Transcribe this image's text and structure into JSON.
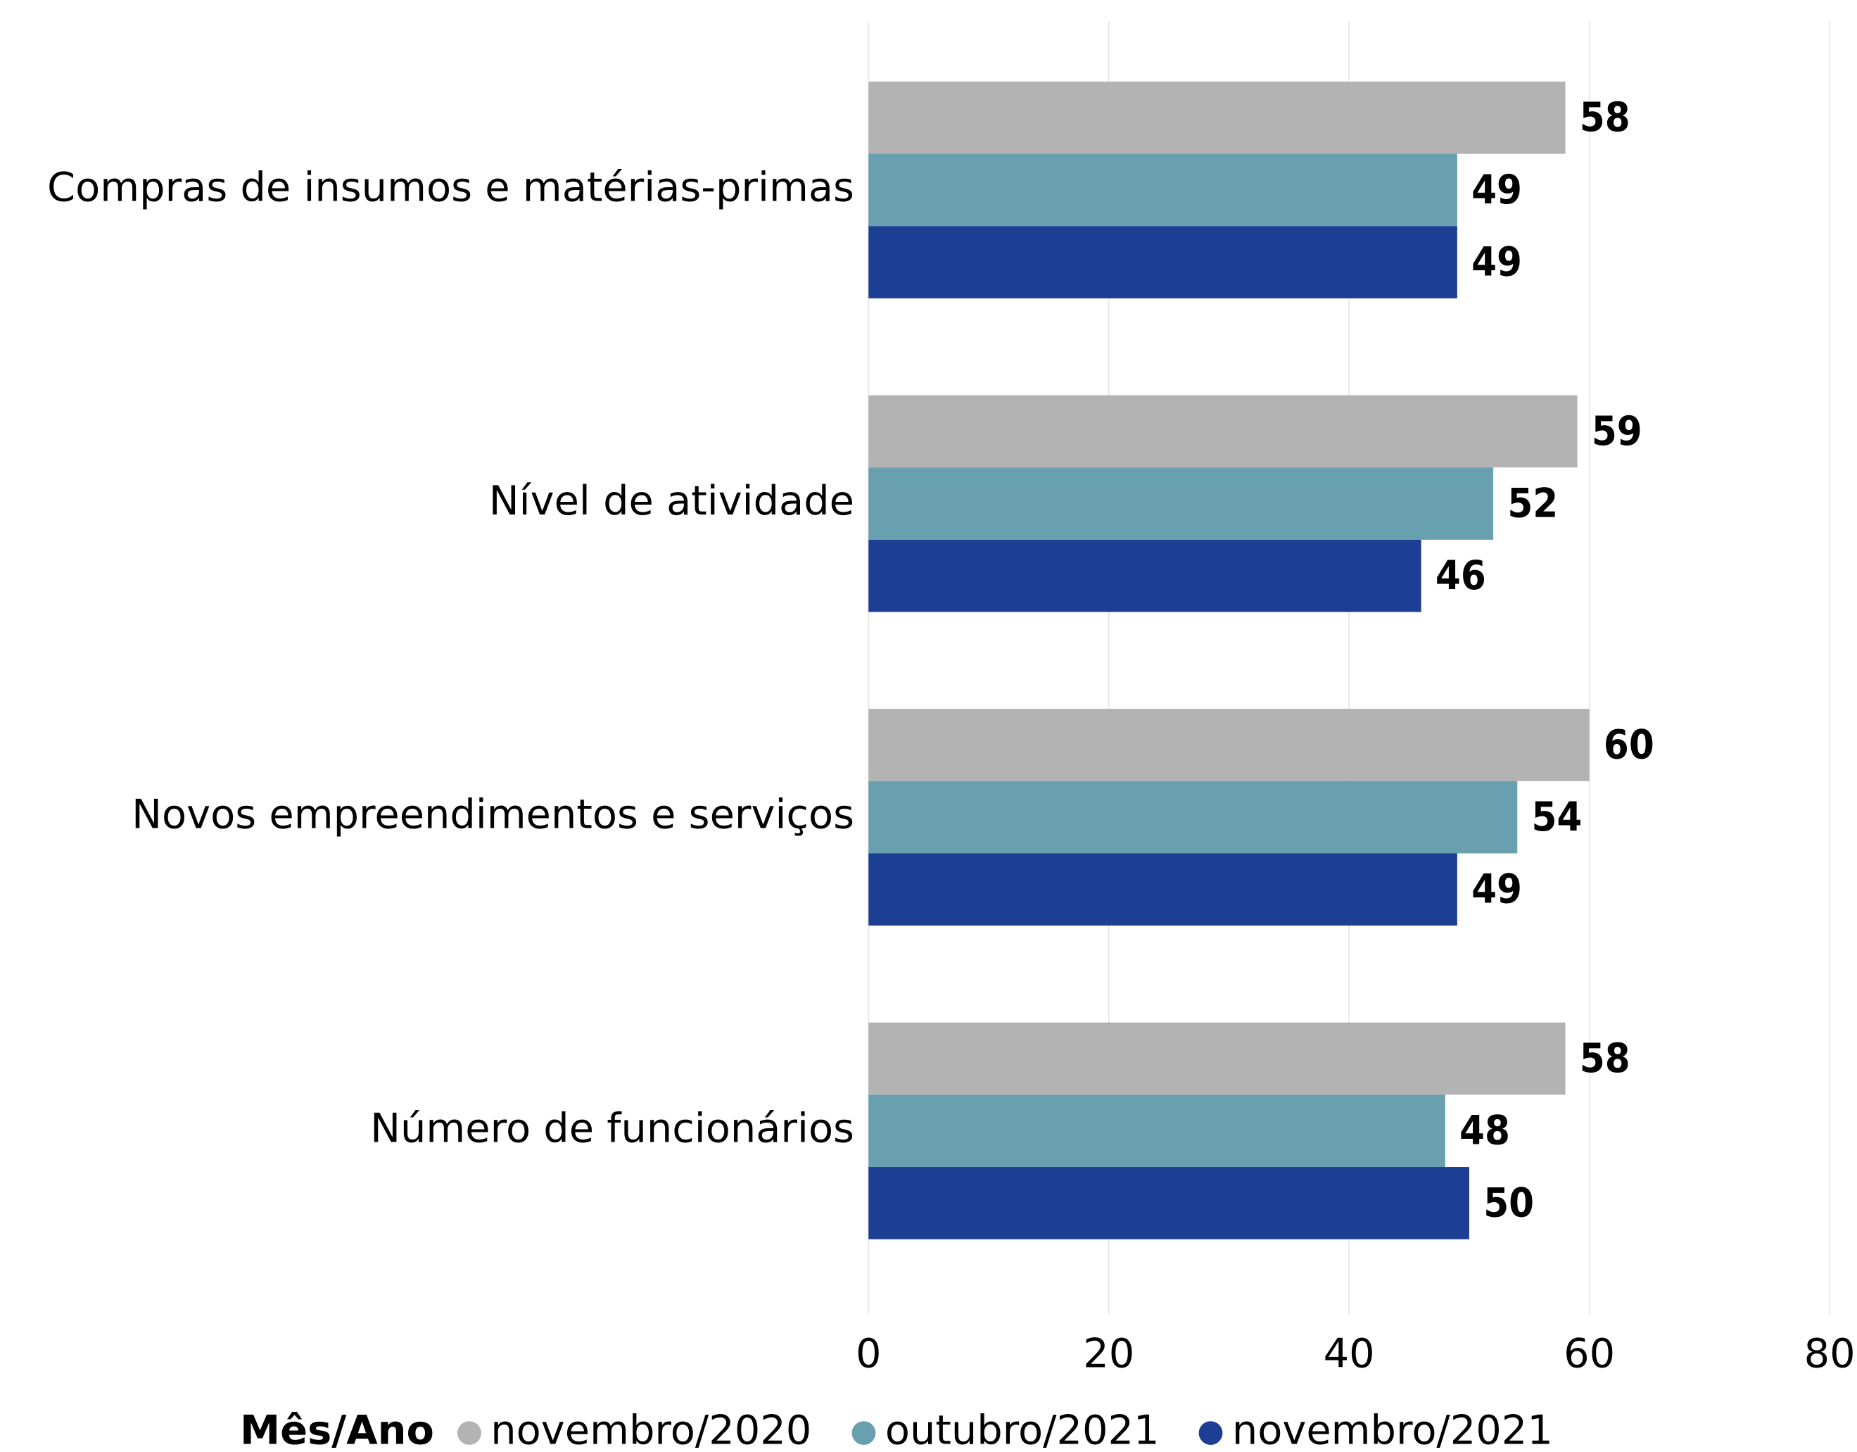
{
  "chart_data": {
    "type": "bar",
    "orientation": "horizontal",
    "categories": [
      "Compras de insumos e matérias-primas",
      "Nível de atividade",
      "Novos empreendimentos e serviços",
      "Número de funcionários"
    ],
    "series": [
      {
        "name": "novembro/2020",
        "color": "#b3b3b3",
        "values": [
          58,
          59,
          60,
          58
        ]
      },
      {
        "name": "outubro/2021",
        "color": "#68a0b0",
        "values": [
          49,
          52,
          54,
          48
        ]
      },
      {
        "name": "novembro/2021",
        "color": "#1c3f94",
        "values": [
          49,
          46,
          49,
          50
        ]
      }
    ],
    "xlim": [
      0,
      80
    ],
    "xticks": [
      0,
      20,
      40,
      60,
      80
    ],
    "grid": true,
    "legend_title": "Mês/Ano",
    "legend_position": "bottom"
  }
}
